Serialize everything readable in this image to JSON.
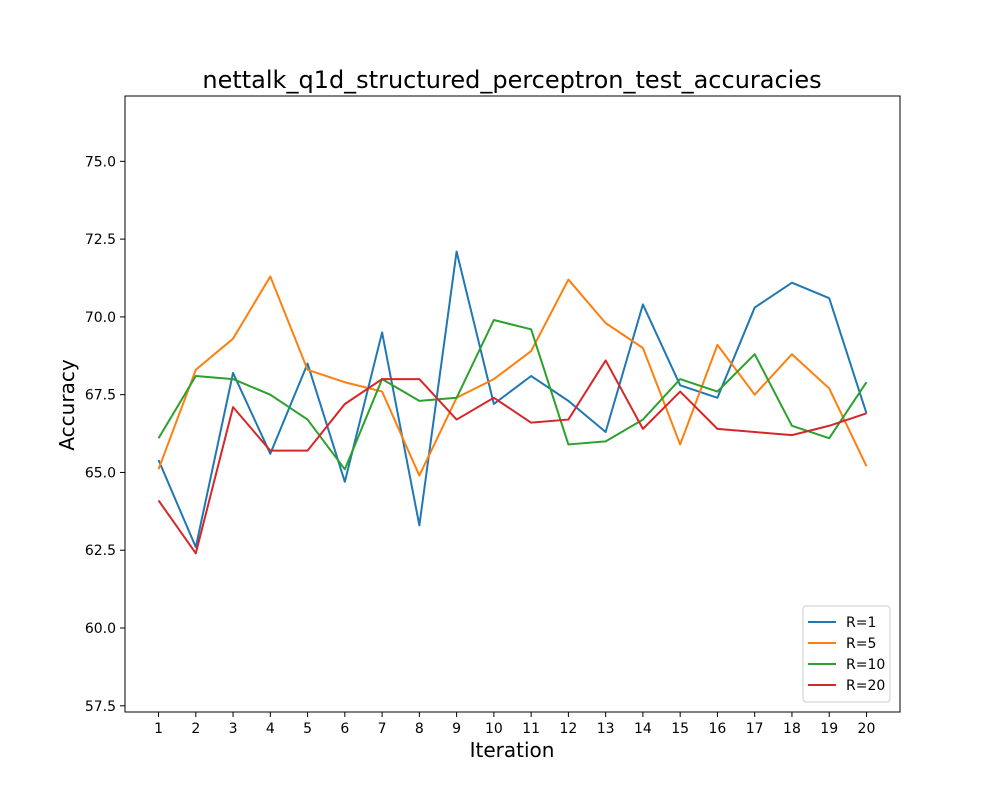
{
  "chart_data": {
    "type": "line",
    "title": "nettalk_q1d_structured_perceptron_test_accuracies",
    "xlabel": "Iteration",
    "ylabel": "Accuracy",
    "x": [
      1,
      2,
      3,
      4,
      5,
      6,
      7,
      8,
      9,
      10,
      11,
      12,
      13,
      14,
      15,
      16,
      17,
      18,
      19,
      20
    ],
    "x_tick_labels": [
      "1",
      "2",
      "3",
      "4",
      "5",
      "6",
      "7",
      "8",
      "9",
      "10",
      "11",
      "12",
      "13",
      "14",
      "15",
      "16",
      "17",
      "18",
      "19",
      "20"
    ],
    "xlim": [
      0.1,
      20.9
    ],
    "ylim": [
      57.3,
      77.1
    ],
    "y_ticks": [
      57.5,
      60.0,
      62.5,
      65.0,
      67.5,
      70.0,
      72.5,
      75.0
    ],
    "y_tick_labels": [
      "57.5",
      "60.0",
      "62.5",
      "65.0",
      "67.5",
      "70.0",
      "72.5",
      "75.0"
    ],
    "grid": false,
    "legend_position": "lower-right",
    "series": [
      {
        "name": "R=1",
        "color": "#1f77b4",
        "values": [
          65.4,
          62.6,
          68.2,
          65.6,
          68.5,
          64.7,
          69.5,
          63.3,
          72.1,
          67.2,
          68.1,
          67.3,
          66.3,
          70.4,
          67.8,
          67.4,
          70.3,
          71.1,
          70.6,
          66.9
        ]
      },
      {
        "name": "R=5",
        "color": "#ff7f0e",
        "values": [
          65.1,
          68.3,
          69.3,
          71.3,
          68.3,
          67.9,
          67.6,
          64.9,
          67.4,
          68.0,
          68.9,
          71.2,
          69.8,
          69.0,
          65.9,
          69.1,
          67.5,
          68.8,
          67.7,
          65.2
        ]
      },
      {
        "name": "R=10",
        "color": "#2ca02c",
        "values": [
          66.1,
          68.1,
          68.0,
          67.5,
          66.7,
          65.1,
          68.0,
          67.3,
          67.4,
          69.9,
          69.6,
          65.9,
          66.0,
          66.7,
          68.0,
          67.6,
          68.8,
          66.5,
          66.1,
          67.9
        ]
      },
      {
        "name": "R=20",
        "color": "#d62728",
        "values": [
          64.1,
          62.4,
          67.1,
          65.7,
          65.7,
          67.2,
          68.0,
          68.0,
          66.7,
          67.4,
          66.6,
          66.7,
          68.6,
          66.4,
          67.6,
          66.4,
          66.3,
          66.2,
          66.5,
          66.9
        ]
      }
    ]
  }
}
